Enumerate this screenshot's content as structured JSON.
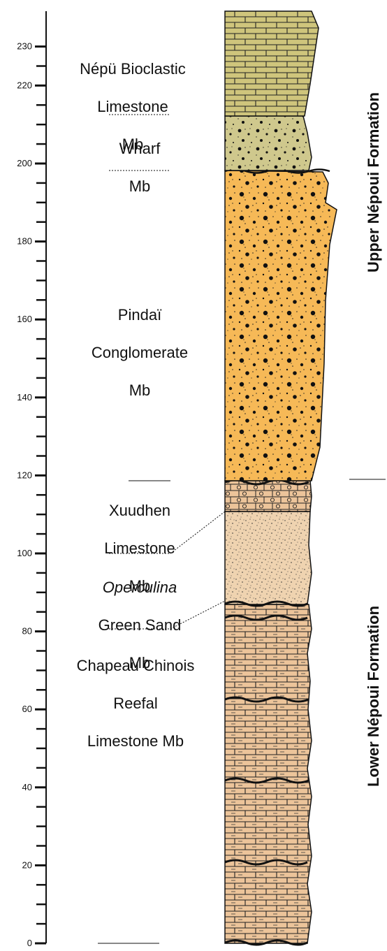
{
  "axis": {
    "ticks": [
      "0",
      "20",
      "40",
      "60",
      "80",
      "100",
      "120",
      "140",
      "160",
      "180",
      "200",
      "220",
      "230"
    ]
  },
  "members": {
    "nepu": [
      "Népü Bioclastic",
      "Limestone",
      "Mb"
    ],
    "wharf": [
      "Wharf",
      "Mb"
    ],
    "pindai": [
      "Pindaï",
      "Conglomerate",
      "Mb"
    ],
    "xuudhen": [
      "Xuudhen",
      "Limestone",
      "Mb"
    ],
    "operculina": [
      "Operculina",
      "Green Sand",
      "Mb"
    ],
    "chapeau": [
      "Chapeau Chinois",
      "Reefal",
      "Limestone Mb"
    ]
  },
  "formations": {
    "upper": "Upper Népoui Formation",
    "lower": "Lower Népoui Formation"
  },
  "colors": {
    "limestone_reefal": "#ecc49a",
    "green_sand": "#efd3b0",
    "xuudhen": "#ecc49a",
    "conglomerate": "#f6b957",
    "wharf": "#cfc88d",
    "bioclastic": "#cfc57c"
  }
}
